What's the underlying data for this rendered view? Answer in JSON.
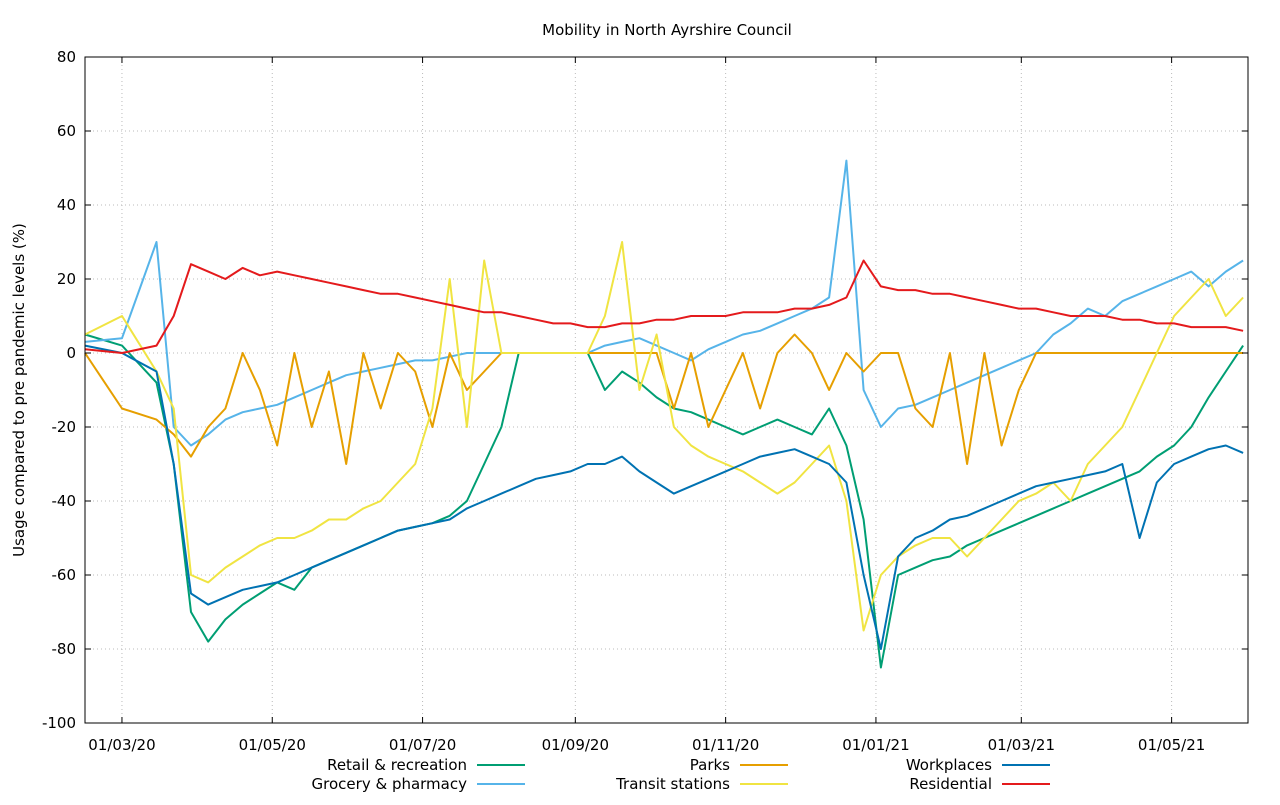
{
  "chart_data": {
    "type": "line",
    "title": "Mobility in North Ayrshire Council",
    "xlabel": "",
    "ylabel": "Usage compared to pre pandemic levels (%)",
    "ylim": [
      -100,
      80
    ],
    "yticks": [
      "80",
      "60",
      "40",
      "20",
      "0",
      "-20",
      "-40",
      "-60",
      "-80",
      "-100"
    ],
    "xlim": [
      "2020-02-15",
      "2021-06-01"
    ],
    "xticks": [
      "01/03/20",
      "01/05/20",
      "01/07/20",
      "01/09/20",
      "01/11/20",
      "01/01/21",
      "01/03/21",
      "01/05/21"
    ],
    "grid": true,
    "legend_position": "bottom",
    "series": [
      {
        "name": "Retail & recreation",
        "color": "#009e73",
        "x": [
          "2020-02-15",
          "2020-03-01",
          "2020-03-15",
          "2020-03-22",
          "2020-03-29",
          "2020-04-05",
          "2020-04-12",
          "2020-04-19",
          "2020-04-26",
          "2020-05-03",
          "2020-05-10",
          "2020-05-17",
          "2020-05-24",
          "2020-05-31",
          "2020-06-07",
          "2020-06-14",
          "2020-06-21",
          "2020-06-28",
          "2020-07-05",
          "2020-07-12",
          "2020-07-19",
          "2020-07-26",
          "2020-08-02",
          "2020-08-09",
          "2020-08-16",
          "2020-08-23",
          "2020-08-30",
          "2020-09-06",
          "2020-09-13",
          "2020-09-20",
          "2020-09-27",
          "2020-10-04",
          "2020-10-11",
          "2020-10-18",
          "2020-10-25",
          "2020-11-01",
          "2020-11-08",
          "2020-11-15",
          "2020-11-22",
          "2020-11-29",
          "2020-12-06",
          "2020-12-13",
          "2020-12-20",
          "2020-12-27",
          "2021-01-03",
          "2021-01-10",
          "2021-01-17",
          "2021-01-24",
          "2021-01-31",
          "2021-02-07",
          "2021-02-14",
          "2021-02-21",
          "2021-02-28",
          "2021-03-07",
          "2021-03-14",
          "2021-03-21",
          "2021-03-28",
          "2021-04-04",
          "2021-04-11",
          "2021-04-18",
          "2021-04-25",
          "2021-05-02",
          "2021-05-09",
          "2021-05-16",
          "2021-05-23",
          "2021-05-30"
        ],
        "values": [
          5,
          2,
          -8,
          -30,
          -70,
          -78,
          -72,
          -68,
          -65,
          -62,
          -64,
          -58,
          -56,
          -54,
          -52,
          -50,
          -48,
          -47,
          -46,
          -44,
          -40,
          -30,
          -20,
          0,
          0,
          0,
          0,
          0,
          -10,
          -5,
          -8,
          -12,
          -15,
          -16,
          -18,
          -20,
          -22,
          -20,
          -18,
          -20,
          -22,
          -15,
          -25,
          -45,
          -85,
          -60,
          -58,
          -56,
          -55,
          -52,
          -50,
          -48,
          -46,
          -44,
          -42,
          -40,
          -38,
          -36,
          -34,
          -32,
          -28,
          -25,
          -20,
          -12,
          -5,
          2
        ]
      },
      {
        "name": "Grocery & pharmacy",
        "color": "#56b4e9",
        "x": [
          "2020-02-15",
          "2020-03-01",
          "2020-03-15",
          "2020-03-22",
          "2020-03-29",
          "2020-04-05",
          "2020-04-12",
          "2020-04-19",
          "2020-04-26",
          "2020-05-03",
          "2020-05-10",
          "2020-05-17",
          "2020-05-24",
          "2020-05-31",
          "2020-06-07",
          "2020-06-14",
          "2020-06-21",
          "2020-06-28",
          "2020-07-05",
          "2020-07-12",
          "2020-07-19",
          "2020-07-26",
          "2020-08-02",
          "2020-08-09",
          "2020-08-16",
          "2020-08-23",
          "2020-08-30",
          "2020-09-06",
          "2020-09-13",
          "2020-09-20",
          "2020-09-27",
          "2020-10-04",
          "2020-10-11",
          "2020-10-18",
          "2020-10-25",
          "2020-11-01",
          "2020-11-08",
          "2020-11-15",
          "2020-11-22",
          "2020-11-29",
          "2020-12-06",
          "2020-12-13",
          "2020-12-20",
          "2020-12-27",
          "2021-01-03",
          "2021-01-10",
          "2021-01-17",
          "2021-01-24",
          "2021-01-31",
          "2021-02-07",
          "2021-02-14",
          "2021-02-21",
          "2021-02-28",
          "2021-03-07",
          "2021-03-14",
          "2021-03-21",
          "2021-03-28",
          "2021-04-04",
          "2021-04-11",
          "2021-04-18",
          "2021-04-25",
          "2021-05-02",
          "2021-05-09",
          "2021-05-16",
          "2021-05-23",
          "2021-05-30"
        ],
        "values": [
          3,
          4,
          30,
          -20,
          -25,
          -22,
          -18,
          -16,
          -15,
          -14,
          -12,
          -10,
          -8,
          -6,
          -5,
          -4,
          -3,
          -2,
          -2,
          -1,
          0,
          0,
          0,
          0,
          0,
          0,
          0,
          0,
          2,
          3,
          4,
          2,
          0,
          -2,
          1,
          3,
          5,
          6,
          8,
          10,
          12,
          15,
          52,
          -10,
          -20,
          -15,
          -14,
          -12,
          -10,
          -8,
          -6,
          -4,
          -2,
          0,
          5,
          8,
          12,
          10,
          14,
          16,
          18,
          20,
          22,
          18,
          22,
          25
        ]
      },
      {
        "name": "Parks",
        "color": "#e69f00",
        "x": [
          "2020-02-15",
          "2020-03-01",
          "2020-03-15",
          "2020-03-22",
          "2020-03-29",
          "2020-04-05",
          "2020-04-12",
          "2020-04-19",
          "2020-04-26",
          "2020-05-03",
          "2020-05-10",
          "2020-05-17",
          "2020-05-24",
          "2020-05-31",
          "2020-06-07",
          "2020-06-14",
          "2020-06-21",
          "2020-06-28",
          "2020-07-05",
          "2020-07-12",
          "2020-07-19",
          "2020-07-26",
          "2020-08-02",
          "2020-08-09",
          "2020-08-16",
          "2020-08-23",
          "2020-08-30",
          "2020-09-06",
          "2020-09-13",
          "2020-09-20",
          "2020-09-27",
          "2020-10-04",
          "2020-10-11",
          "2020-10-18",
          "2020-10-25",
          "2020-11-01",
          "2020-11-08",
          "2020-11-15",
          "2020-11-22",
          "2020-11-29",
          "2020-12-06",
          "2020-12-13",
          "2020-12-20",
          "2020-12-27",
          "2021-01-03",
          "2021-01-10",
          "2021-01-17",
          "2021-01-24",
          "2021-01-31",
          "2021-02-07",
          "2021-02-14",
          "2021-02-21",
          "2021-02-28",
          "2021-03-07",
          "2021-03-14",
          "2021-03-21",
          "2021-03-28",
          "2021-04-04",
          "2021-04-11",
          "2021-04-18",
          "2021-04-25",
          "2021-05-02",
          "2021-05-09",
          "2021-05-16",
          "2021-05-23",
          "2021-05-30"
        ],
        "values": [
          0,
          -15,
          -18,
          -22,
          -28,
          -20,
          -15,
          0,
          -10,
          -25,
          0,
          -20,
          -5,
          -30,
          0,
          -15,
          0,
          -5,
          -20,
          0,
          -10,
          -5,
          0,
          0,
          0,
          0,
          0,
          0,
          0,
          0,
          0,
          0,
          -15,
          0,
          -20,
          -10,
          0,
          -15,
          0,
          5,
          0,
          -10,
          0,
          -5,
          0,
          0,
          -15,
          -20,
          0,
          -30,
          0,
          -25,
          -10,
          0,
          0,
          0,
          0,
          0,
          0,
          0,
          0,
          0,
          0,
          0,
          0,
          0
        ]
      },
      {
        "name": "Transit stations",
        "color": "#f0e442",
        "x": [
          "2020-02-15",
          "2020-03-01",
          "2020-03-15",
          "2020-03-22",
          "2020-03-29",
          "2020-04-05",
          "2020-04-12",
          "2020-04-19",
          "2020-04-26",
          "2020-05-03",
          "2020-05-10",
          "2020-05-17",
          "2020-05-24",
          "2020-05-31",
          "2020-06-07",
          "2020-06-14",
          "2020-06-21",
          "2020-06-28",
          "2020-07-05",
          "2020-07-12",
          "2020-07-19",
          "2020-07-26",
          "2020-08-02",
          "2020-08-09",
          "2020-08-16",
          "2020-08-23",
          "2020-08-30",
          "2020-09-06",
          "2020-09-13",
          "2020-09-20",
          "2020-09-27",
          "2020-10-04",
          "2020-10-11",
          "2020-10-18",
          "2020-10-25",
          "2020-11-01",
          "2020-11-08",
          "2020-11-15",
          "2020-11-22",
          "2020-11-29",
          "2020-12-06",
          "2020-12-13",
          "2020-12-20",
          "2020-12-27",
          "2021-01-03",
          "2021-01-10",
          "2021-01-17",
          "2021-01-24",
          "2021-01-31",
          "2021-02-07",
          "2021-02-14",
          "2021-02-21",
          "2021-02-28",
          "2021-03-07",
          "2021-03-14",
          "2021-03-21",
          "2021-03-28",
          "2021-04-04",
          "2021-04-11",
          "2021-04-18",
          "2021-04-25",
          "2021-05-02",
          "2021-05-09",
          "2021-05-16",
          "2021-05-23",
          "2021-05-30"
        ],
        "values": [
          5,
          10,
          -5,
          -15,
          -60,
          -62,
          -58,
          -55,
          -52,
          -50,
          -50,
          -48,
          -45,
          -45,
          -42,
          -40,
          -35,
          -30,
          -15,
          20,
          -20,
          25,
          0,
          0,
          0,
          0,
          0,
          0,
          10,
          30,
          -10,
          5,
          -20,
          -25,
          -28,
          -30,
          -32,
          -35,
          -38,
          -35,
          -30,
          -25,
          -40,
          -75,
          -60,
          -55,
          -52,
          -50,
          -50,
          -55,
          -50,
          -45,
          -40,
          -38,
          -35,
          -40,
          -30,
          -25,
          -20,
          -10,
          0,
          10,
          15,
          20,
          10,
          15
        ]
      },
      {
        "name": "Workplaces",
        "color": "#0072b2",
        "x": [
          "2020-02-15",
          "2020-03-01",
          "2020-03-15",
          "2020-03-22",
          "2020-03-29",
          "2020-04-05",
          "2020-04-12",
          "2020-04-19",
          "2020-04-26",
          "2020-05-03",
          "2020-05-10",
          "2020-05-17",
          "2020-05-24",
          "2020-05-31",
          "2020-06-07",
          "2020-06-14",
          "2020-06-21",
          "2020-06-28",
          "2020-07-05",
          "2020-07-12",
          "2020-07-19",
          "2020-07-26",
          "2020-08-02",
          "2020-08-09",
          "2020-08-16",
          "2020-08-23",
          "2020-08-30",
          "2020-09-06",
          "2020-09-13",
          "2020-09-20",
          "2020-09-27",
          "2020-10-04",
          "2020-10-11",
          "2020-10-18",
          "2020-10-25",
          "2020-11-01",
          "2020-11-08",
          "2020-11-15",
          "2020-11-22",
          "2020-11-29",
          "2020-12-06",
          "2020-12-13",
          "2020-12-20",
          "2020-12-27",
          "2021-01-03",
          "2021-01-10",
          "2021-01-17",
          "2021-01-24",
          "2021-01-31",
          "2021-02-07",
          "2021-02-14",
          "2021-02-21",
          "2021-02-28",
          "2021-03-07",
          "2021-03-14",
          "2021-03-21",
          "2021-03-28",
          "2021-04-04",
          "2021-04-11",
          "2021-04-18",
          "2021-04-25",
          "2021-05-02",
          "2021-05-09",
          "2021-05-16",
          "2021-05-23",
          "2021-05-30"
        ],
        "values": [
          2,
          0,
          -5,
          -30,
          -65,
          -68,
          -66,
          -64,
          -63,
          -62,
          -60,
          -58,
          -56,
          -54,
          -52,
          -50,
          -48,
          -47,
          -46,
          -45,
          -42,
          -40,
          -38,
          -36,
          -34,
          -33,
          -32,
          -30,
          -30,
          -28,
          -32,
          -35,
          -38,
          -36,
          -34,
          -32,
          -30,
          -28,
          -27,
          -26,
          -28,
          -30,
          -35,
          -60,
          -80,
          -55,
          -50,
          -48,
          -45,
          -44,
          -42,
          -40,
          -38,
          -36,
          -35,
          -34,
          -33,
          -32,
          -30,
          -50,
          -35,
          -30,
          -28,
          -26,
          -25,
          -27
        ]
      },
      {
        "name": "Residential",
        "color": "#e41a1c",
        "x": [
          "2020-02-15",
          "2020-03-01",
          "2020-03-15",
          "2020-03-22",
          "2020-03-29",
          "2020-04-05",
          "2020-04-12",
          "2020-04-19",
          "2020-04-26",
          "2020-05-03",
          "2020-05-10",
          "2020-05-17",
          "2020-05-24",
          "2020-05-31",
          "2020-06-07",
          "2020-06-14",
          "2020-06-21",
          "2020-06-28",
          "2020-07-05",
          "2020-07-12",
          "2020-07-19",
          "2020-07-26",
          "2020-08-02",
          "2020-08-09",
          "2020-08-16",
          "2020-08-23",
          "2020-08-30",
          "2020-09-06",
          "2020-09-13",
          "2020-09-20",
          "2020-09-27",
          "2020-10-04",
          "2020-10-11",
          "2020-10-18",
          "2020-10-25",
          "2020-11-01",
          "2020-11-08",
          "2020-11-15",
          "2020-11-22",
          "2020-11-29",
          "2020-12-06",
          "2020-12-13",
          "2020-12-20",
          "2020-12-27",
          "2021-01-03",
          "2021-01-10",
          "2021-01-17",
          "2021-01-24",
          "2021-01-31",
          "2021-02-07",
          "2021-02-14",
          "2021-02-21",
          "2021-02-28",
          "2021-03-07",
          "2021-03-14",
          "2021-03-21",
          "2021-03-28",
          "2021-04-04",
          "2021-04-11",
          "2021-04-18",
          "2021-04-25",
          "2021-05-02",
          "2021-05-09",
          "2021-05-16",
          "2021-05-23",
          "2021-05-30"
        ],
        "values": [
          1,
          0,
          2,
          10,
          24,
          22,
          20,
          23,
          21,
          22,
          21,
          20,
          19,
          18,
          17,
          16,
          16,
          15,
          14,
          13,
          12,
          11,
          11,
          10,
          9,
          8,
          8,
          7,
          7,
          8,
          8,
          9,
          9,
          10,
          10,
          10,
          11,
          11,
          11,
          12,
          12,
          13,
          15,
          25,
          18,
          17,
          17,
          16,
          16,
          15,
          14,
          13,
          12,
          12,
          11,
          10,
          10,
          10,
          9,
          9,
          8,
          8,
          7,
          7,
          7,
          6
        ]
      }
    ]
  }
}
